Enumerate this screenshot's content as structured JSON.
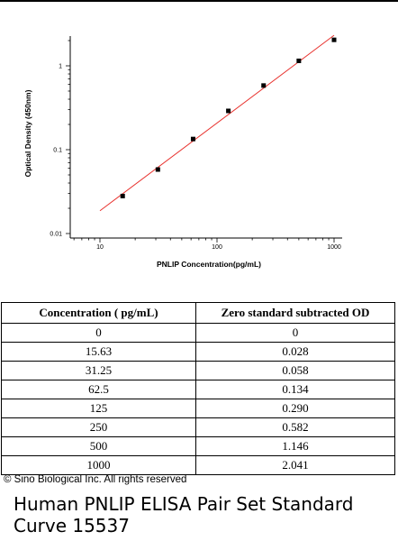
{
  "chart_data": {
    "type": "scatter",
    "x_scale": "log",
    "y_scale": "log",
    "xlabel": "PNLIP  Concentration(pg/mL)",
    "ylabel": "Optical Density (450nm)",
    "xlim": [
      10,
      1000
    ],
    "ylim": [
      0.01,
      2.5
    ],
    "x_ticks": [
      {
        "value": 10,
        "label": "10"
      },
      {
        "value": 100,
        "label": "100"
      },
      {
        "value": 1000,
        "label": "1000"
      }
    ],
    "y_ticks": [
      {
        "value": 0.01,
        "label": "0.01"
      },
      {
        "value": 0.1,
        "label": "0.1"
      },
      {
        "value": 1,
        "label": "1"
      }
    ],
    "points": [
      {
        "x": 15.63,
        "y": 0.028
      },
      {
        "x": 31.25,
        "y": 0.058
      },
      {
        "x": 62.5,
        "y": 0.134
      },
      {
        "x": 125,
        "y": 0.29
      },
      {
        "x": 250,
        "y": 0.582
      },
      {
        "x": 500,
        "y": 1.146
      },
      {
        "x": 1000,
        "y": 2.041
      }
    ],
    "fit_line": {
      "color": "#e8322e",
      "x_range": [
        10,
        1000
      ]
    },
    "point_color": "#000000",
    "grid": false,
    "legend": "none"
  },
  "table": {
    "headers": [
      "Concentration ( pg/mL)",
      "Zero standard subtracted OD"
    ],
    "rows": [
      [
        "0",
        "0"
      ],
      [
        "15.63",
        "0.028"
      ],
      [
        "31.25",
        "0.058"
      ],
      [
        "62.5",
        "0.134"
      ],
      [
        "125",
        "0.290"
      ],
      [
        "250",
        "0.582"
      ],
      [
        "500",
        "1.146"
      ],
      [
        "1000",
        "2.041"
      ]
    ]
  },
  "copyright": "© Sino Biological Inc. All rights reserved",
  "caption": "Human PNLIP ELISA Pair Set Standard Curve 15537"
}
